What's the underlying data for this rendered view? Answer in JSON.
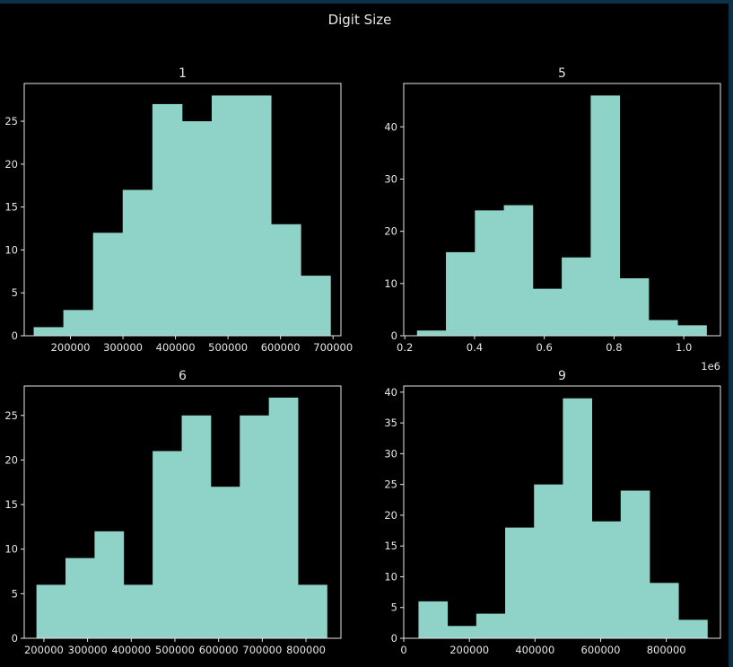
{
  "figure": {
    "title": "Digit Size",
    "bar_color": "#8fd3c8",
    "background": "#000000"
  },
  "chart_data": [
    {
      "type": "bar",
      "title": "1",
      "bin_edges": [
        130000,
        186500,
        243000,
        299500,
        356000,
        412500,
        469000,
        525500,
        582000,
        638500,
        695000
      ],
      "values": [
        1,
        3,
        12,
        17,
        27,
        25,
        28,
        28,
        13,
        7
      ],
      "xlim": [
        112000,
        715000
      ],
      "ylim": [
        0,
        29.4
      ],
      "xticks": [
        200000,
        300000,
        400000,
        500000,
        600000,
        700000
      ],
      "xticklabels": [
        "200000",
        "300000",
        "400000",
        "500000",
        "600000",
        "700000"
      ],
      "yticks": [
        0,
        5,
        10,
        15,
        20,
        25
      ],
      "yticklabels": [
        "0",
        "5",
        "10",
        "15",
        "20",
        "25"
      ],
      "offset_text": ""
    },
    {
      "type": "bar",
      "title": "5",
      "bin_edges": [
        0.235,
        0.318,
        0.401,
        0.484,
        0.567,
        0.65,
        0.733,
        0.816,
        0.899,
        0.982,
        1.065
      ],
      "values": [
        1,
        16,
        24,
        25,
        9,
        15,
        46,
        11,
        3,
        2
      ],
      "xlim": [
        0.197,
        1.105
      ],
      "ylim": [
        0,
        48.3
      ],
      "xticks": [
        0.2,
        0.4,
        0.6,
        0.8,
        1.0
      ],
      "xticklabels": [
        "0.2",
        "0.4",
        "0.6",
        "0.8",
        "1.0"
      ],
      "yticks": [
        0,
        10,
        20,
        30,
        40
      ],
      "yticklabels": [
        "0",
        "10",
        "20",
        "30",
        "40"
      ],
      "offset_text": "1e6"
    },
    {
      "type": "bar",
      "title": "6",
      "bin_edges": [
        183000,
        249500,
        316000,
        382500,
        449000,
        515500,
        582000,
        648500,
        715000,
        781500,
        848000
      ],
      "values": [
        6,
        9,
        12,
        6,
        21,
        25,
        17,
        25,
        27,
        6
      ],
      "xlim": [
        155000,
        880000
      ],
      "ylim": [
        0,
        28.3
      ],
      "xticks": [
        200000,
        300000,
        400000,
        500000,
        600000,
        700000,
        800000
      ],
      "xticklabels": [
        "200000",
        "300000",
        "400000",
        "500000",
        "600000",
        "700000",
        "800000"
      ],
      "yticks": [
        0,
        5,
        10,
        15,
        20,
        25
      ],
      "yticklabels": [
        "0",
        "5",
        "10",
        "15",
        "20",
        "25"
      ],
      "offset_text": ""
    },
    {
      "type": "bar",
      "title": "9",
      "bin_edges": [
        45000,
        133000,
        221000,
        309000,
        397000,
        485000,
        573000,
        661000,
        749000,
        837000,
        925000
      ],
      "values": [
        6,
        2,
        4,
        18,
        25,
        39,
        19,
        24,
        9,
        3
      ],
      "xlim": [
        0,
        965000
      ],
      "ylim": [
        0,
        41
      ],
      "xticks": [
        0,
        200000,
        400000,
        600000,
        800000
      ],
      "xticklabels": [
        "0",
        "200000",
        "400000",
        "600000",
        "800000"
      ],
      "yticks": [
        0,
        5,
        10,
        15,
        20,
        25,
        30,
        35,
        40
      ],
      "yticklabels": [
        "0",
        "5",
        "10",
        "15",
        "20",
        "25",
        "30",
        "35",
        "40"
      ],
      "offset_text": ""
    }
  ]
}
